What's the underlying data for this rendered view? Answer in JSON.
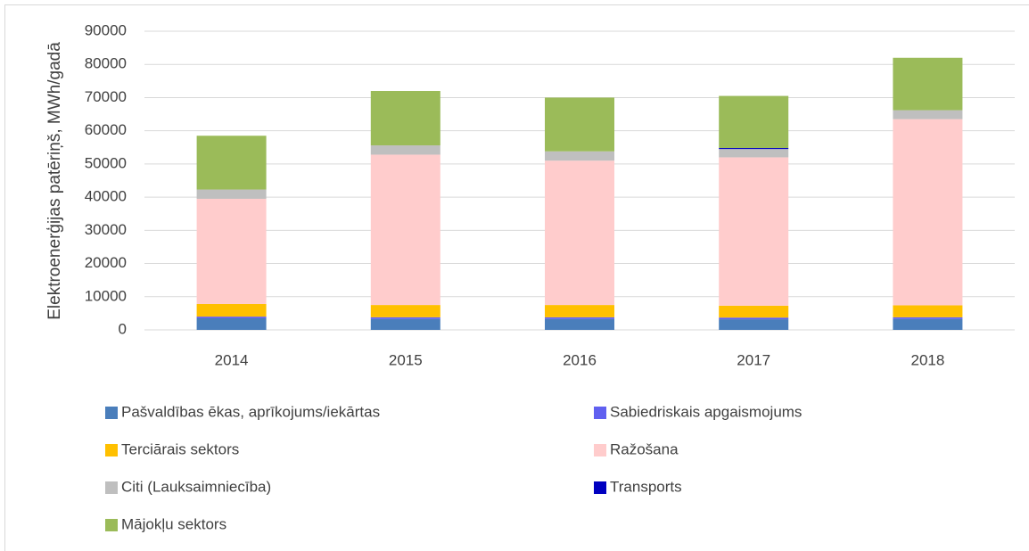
{
  "chart_data": {
    "type": "stacked_bar",
    "y_axis_label": "Elektroenerģijas patēriņš, MWh/gadā",
    "categories": [
      "2014",
      "2015",
      "2016",
      "2017",
      "2018"
    ],
    "series": [
      {
        "name": "Pašvaldības ēkas, aprīkojums/iekārtas",
        "color": "#4a7ebb",
        "values": [
          3500,
          3300,
          3300,
          3200,
          3300
        ]
      },
      {
        "name": "Sabiedriskais apgaismojums",
        "color": "#6060f0",
        "values": [
          500,
          500,
          500,
          500,
          500
        ]
      },
      {
        "name": "Terciārais sektors",
        "color": "#ffc000",
        "values": [
          3800,
          3700,
          3700,
          3600,
          3600
        ]
      },
      {
        "name": "Ražošana",
        "color": "#ffcccc",
        "values": [
          31700,
          45300,
          43500,
          44700,
          56100
        ]
      },
      {
        "name": "Citi (Lauksaimniecība)",
        "color": "#bfbfbf",
        "values": [
          2800,
          2800,
          2800,
          2500,
          2700
        ]
      },
      {
        "name": "Transports",
        "color": "#0000c0",
        "values": [
          0,
          0,
          0,
          300,
          0
        ]
      },
      {
        "name": "Mājokļu sektors",
        "color": "#9bbb59",
        "values": [
          16200,
          16400,
          16200,
          15700,
          15800
        ]
      }
    ],
    "ylim": [
      0,
      90000
    ],
    "yticks": [
      0,
      10000,
      20000,
      30000,
      40000,
      50000,
      60000,
      70000,
      80000,
      90000
    ],
    "grid": true,
    "legend": "bottom"
  }
}
